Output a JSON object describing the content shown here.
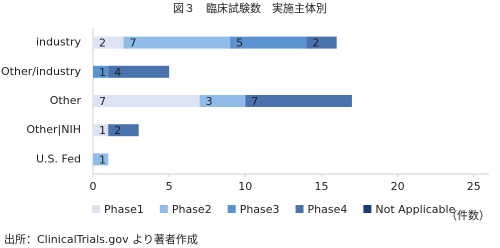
{
  "chart_data": {
    "type": "hbar_stacked",
    "title": "図３　臨床試験数　実施主体別",
    "categories": [
      "industry",
      "Other/industry",
      "Other",
      "Other|NIH",
      "U.S. Fed"
    ],
    "series": [
      {
        "name": "Phase1",
        "color": "#dce3f3",
        "values": [
          2,
          null,
          7,
          1,
          null
        ]
      },
      {
        "name": "Phase2",
        "color": "#8fbde8",
        "values": [
          7,
          null,
          3,
          null,
          1
        ]
      },
      {
        "name": "Phase3",
        "color": "#5b93d0",
        "values": [
          5,
          1,
          null,
          null,
          null
        ]
      },
      {
        "name": "Phase4",
        "color": "#4a72ad",
        "values": [
          2,
          4,
          7,
          2,
          null
        ]
      },
      {
        "name": "Not Applicable",
        "color": "#1d3d78",
        "values": [
          null,
          null,
          null,
          null,
          0
        ]
      }
    ],
    "xlim": [
      0,
      26
    ],
    "xticks": [
      0,
      5,
      10,
      15,
      20,
      25
    ],
    "x_unit_label": "（件数）",
    "source": "出所：ClinicalTrials.gov より著者作成"
  }
}
